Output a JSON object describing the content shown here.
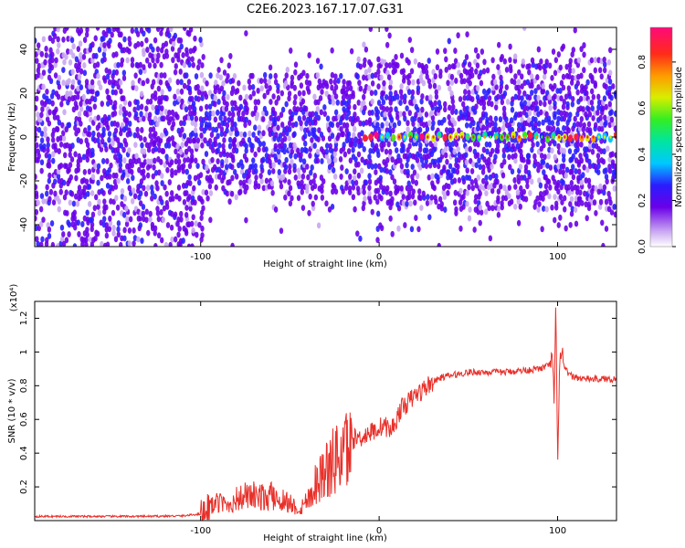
{
  "title": "C2E6.2023.167.17.07.G31",
  "chart_data": [
    {
      "type": "heatmap",
      "xlabel": "Height of straight line (km)",
      "ylabel": "Frequency (Hz)",
      "xlim": [
        -193,
        133
      ],
      "ylim": [
        -50,
        50
      ],
      "xticks": [
        -100,
        0,
        100
      ],
      "yticks": [
        -40,
        -20,
        0,
        20,
        40
      ],
      "colorbar": {
        "label": "Normalized spectral amplitude",
        "range": [
          0.0,
          0.95
        ],
        "ticks": [
          0.0,
          0.2,
          0.4,
          0.6,
          0.8
        ],
        "colormap": "rainbow (white-purple-blue-cyan-green-yellow-red-pink)"
      },
      "features": {
        "carrier_line_frequency_hz": 0,
        "carrier_line_start_km": -8,
        "carrier_line_end_km": 133,
        "carrier_peak_amplitude": 0.85,
        "noise_band_halfwidth_hz": {
          "below_-100_km": 50,
          "-100_to_-10_km": 28,
          "above_-10_km": 35
        }
      },
      "grid": false
    },
    {
      "type": "line",
      "xlabel": "Height of straight line (km)",
      "ylabel": "SNR (10 * v/v)",
      "scale_label": "(x10⁴)",
      "xlim": [
        -193,
        133
      ],
      "ylim": [
        0,
        1.3
      ],
      "xticks": [
        -100,
        0,
        100
      ],
      "yticks": [
        0.2,
        0.4,
        0.6,
        0.8,
        1.0,
        1.2
      ],
      "series_color": "#e8302a",
      "x": [
        -193,
        -160,
        -130,
        -110,
        -100,
        -95,
        -90,
        -85,
        -80,
        -75,
        -70,
        -65,
        -60,
        -55,
        -50,
        -45,
        -40,
        -35,
        -30,
        -27,
        -24,
        -21,
        -18,
        -15,
        -12,
        -9,
        -6,
        -3,
        0,
        3,
        6,
        9,
        12,
        15,
        18,
        21,
        24,
        27,
        30,
        35,
        40,
        45,
        50,
        60,
        70,
        80,
        90,
        95,
        97,
        98,
        99,
        100,
        101,
        102,
        104,
        107,
        110,
        115,
        120,
        125,
        133
      ],
      "values": [
        0.025,
        0.025,
        0.025,
        0.028,
        0.04,
        0.09,
        0.12,
        0.1,
        0.14,
        0.16,
        0.16,
        0.15,
        0.16,
        0.14,
        0.12,
        0.07,
        0.14,
        0.26,
        0.33,
        0.36,
        0.41,
        0.44,
        0.47,
        0.48,
        0.49,
        0.5,
        0.52,
        0.53,
        0.55,
        0.57,
        0.53,
        0.58,
        0.66,
        0.69,
        0.72,
        0.75,
        0.77,
        0.8,
        0.82,
        0.85,
        0.86,
        0.87,
        0.88,
        0.88,
        0.88,
        0.89,
        0.9,
        0.92,
        0.95,
        0.7,
        1.26,
        0.32,
        0.92,
        0.98,
        0.9,
        0.86,
        0.85,
        0.84,
        0.84,
        0.84,
        0.84
      ],
      "grid": false
    }
  ]
}
